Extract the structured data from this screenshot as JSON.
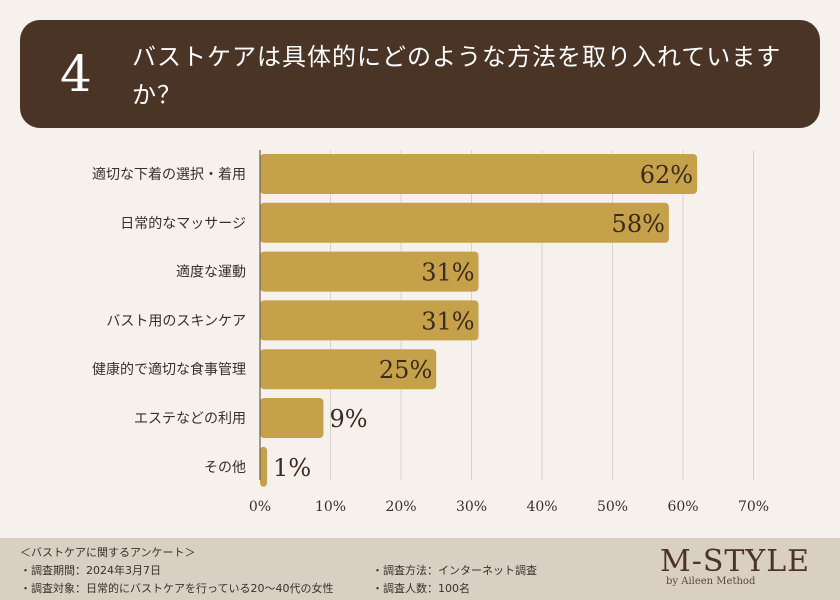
{
  "header": {
    "number": "4",
    "question": "バストケアは具体的にどのような方法を取り入れていますか？"
  },
  "chart_data": {
    "type": "bar",
    "orientation": "horizontal",
    "categories": [
      "適切な下着の選択・着用",
      "日常的なマッサージ",
      "適度な運動",
      "バスト用のスキンケア",
      "健康的で適切な食事管理",
      "エステなどの利用",
      "その他"
    ],
    "values": [
      62,
      58,
      31,
      31,
      25,
      9,
      1
    ],
    "value_labels": [
      "62%",
      "58%",
      "31%",
      "31%",
      "25%",
      "9%",
      "1%"
    ],
    "ticks": [
      "0%",
      "10%",
      "20%",
      "30%",
      "40%",
      "50%",
      "60%",
      "70%"
    ],
    "xlim": [
      0,
      70
    ],
    "grid": true,
    "bar_color": "#c5a14a"
  },
  "footer": {
    "title": "＜バストケアに関するアンケート＞",
    "period": "・調査期間：2024年3月7日",
    "target": "・調査対象：日常的にバストケアを行っている20〜40代の女性",
    "method": "・調査方法：インターネット調査",
    "count": "・調査人数：100名"
  },
  "brand": {
    "name": "M-STYLE",
    "sub": "by Aileen Method"
  }
}
